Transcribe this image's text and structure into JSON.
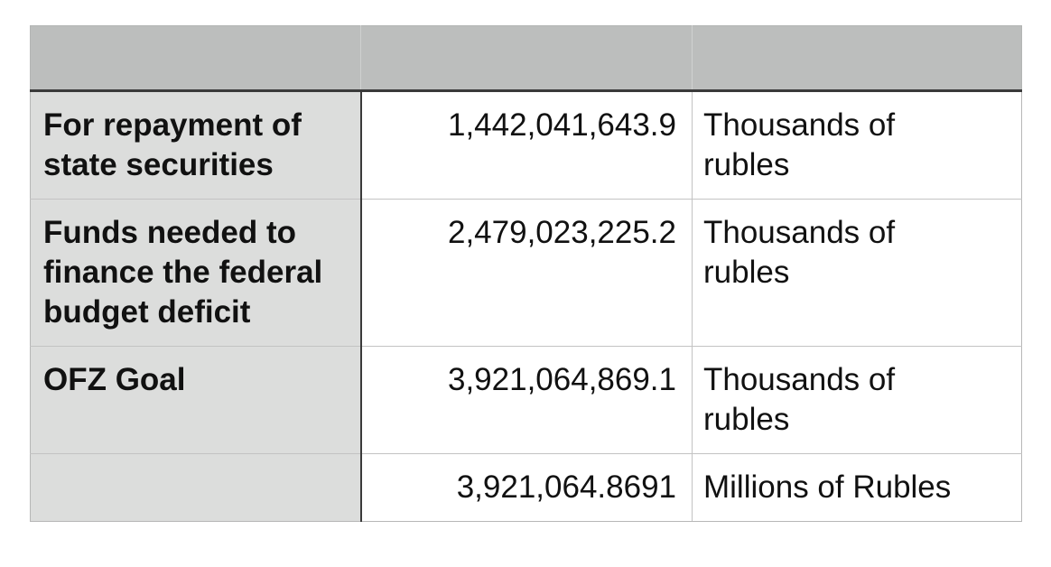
{
  "table": {
    "header": {
      "cells": [
        "",
        "",
        ""
      ]
    },
    "rows": [
      {
        "label": "For repayment of state securities",
        "value": "1,442,041,643.9",
        "unit": "Thousands of rubles"
      },
      {
        "label": "Funds needed to finance the federal budget deficit",
        "value": "2,479,023,225.2",
        "unit": "Thousands of rubles"
      },
      {
        "label": "OFZ Goal",
        "value": "3,921,064,869.1",
        "unit": "Thousands of rubles"
      },
      {
        "label": "",
        "value": "3,921,064.8691",
        "unit": "Millions of Rubles"
      }
    ],
    "colors": {
      "header_bg": "#bcbebd",
      "label_column_bg": "#dcdddc",
      "dark_border": "#3a3a3a",
      "light_border": "#c3c3c3",
      "text": "#111111"
    }
  }
}
